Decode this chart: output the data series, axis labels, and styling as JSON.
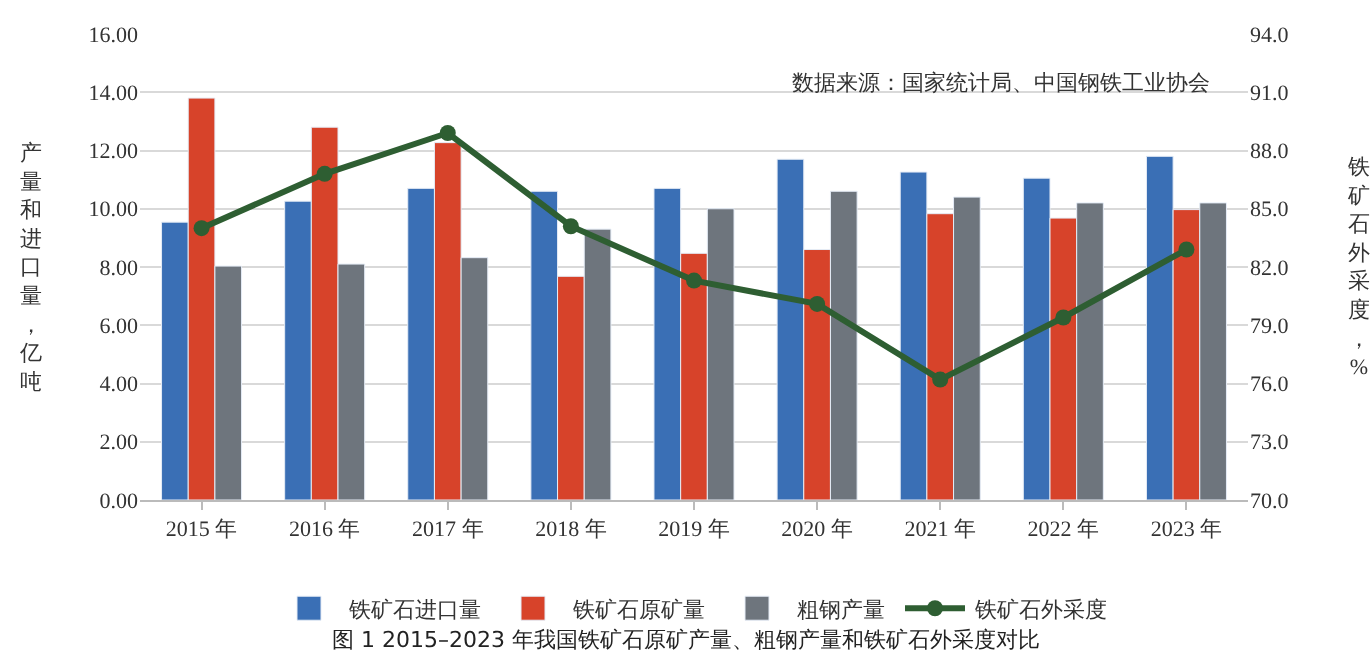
{
  "chart_data": {
    "type": "bar",
    "title": "图 1 2015–2023 年我国铁矿石原矿产量、粗钢产量和铁矿石外采度对比",
    "ylabel": "产量和进口量，亿吨",
    "y2label": "铁矿石外采度，%",
    "annotations": [
      "数据来源：国家统计局、中国钢铁工业协会"
    ],
    "categories": [
      "2015 年",
      "2016 年",
      "2017 年",
      "2018 年",
      "2019 年",
      "2020 年",
      "2021 年",
      "2022 年",
      "2023 年"
    ],
    "series": [
      {
        "name": "铁矿石进口量",
        "color": "#3a6fb5",
        "values": [
          9.54,
          10.26,
          10.7,
          10.6,
          10.7,
          11.7,
          11.26,
          11.05,
          11.8
        ]
      },
      {
        "name": "铁矿石原矿量",
        "color": "#d7432a",
        "values": [
          13.8,
          12.8,
          12.27,
          7.68,
          8.47,
          8.6,
          9.83,
          9.68,
          9.97
        ]
      },
      {
        "name": "粗钢产量",
        "color": "#6e757d",
        "values": [
          8.03,
          8.1,
          8.32,
          9.3,
          10.0,
          10.6,
          10.4,
          10.2,
          10.2
        ]
      },
      {
        "name": "铁矿石外采度",
        "type": "line",
        "axis": "y2",
        "color": "#2e5e32",
        "marker": "circle",
        "values": [
          84.0,
          86.8,
          88.9,
          84.1,
          81.3,
          80.1,
          76.2,
          79.4,
          82.9
        ]
      }
    ],
    "ylim": [
      0,
      16
    ],
    "yticks": [
      {
        "value": 0,
        "label": "0.00"
      },
      {
        "value": 2,
        "label": "2.00"
      },
      {
        "value": 4,
        "label": "4.00"
      },
      {
        "value": 6,
        "label": "6.00"
      },
      {
        "value": 8,
        "label": "8.00"
      },
      {
        "value": 10,
        "label": "10.00"
      },
      {
        "value": 12,
        "label": "12.00"
      },
      {
        "value": 14,
        "label": "14.00"
      },
      {
        "value": 16,
        "label": "16.00"
      }
    ],
    "y2lim": [
      70,
      94
    ],
    "y2ticks": [
      {
        "value": 70,
        "label": "70.0"
      },
      {
        "value": 73,
        "label": "73.0"
      },
      {
        "value": 76,
        "label": "76.0"
      },
      {
        "value": 79,
        "label": "79.0"
      },
      {
        "value": 82,
        "label": "82.0"
      },
      {
        "value": 85,
        "label": "85.0"
      },
      {
        "value": 88,
        "label": "88.0"
      },
      {
        "value": 91,
        "label": "91.0"
      },
      {
        "value": 94,
        "label": "94.0"
      }
    ],
    "grid": "y",
    "legend": "bottom"
  }
}
